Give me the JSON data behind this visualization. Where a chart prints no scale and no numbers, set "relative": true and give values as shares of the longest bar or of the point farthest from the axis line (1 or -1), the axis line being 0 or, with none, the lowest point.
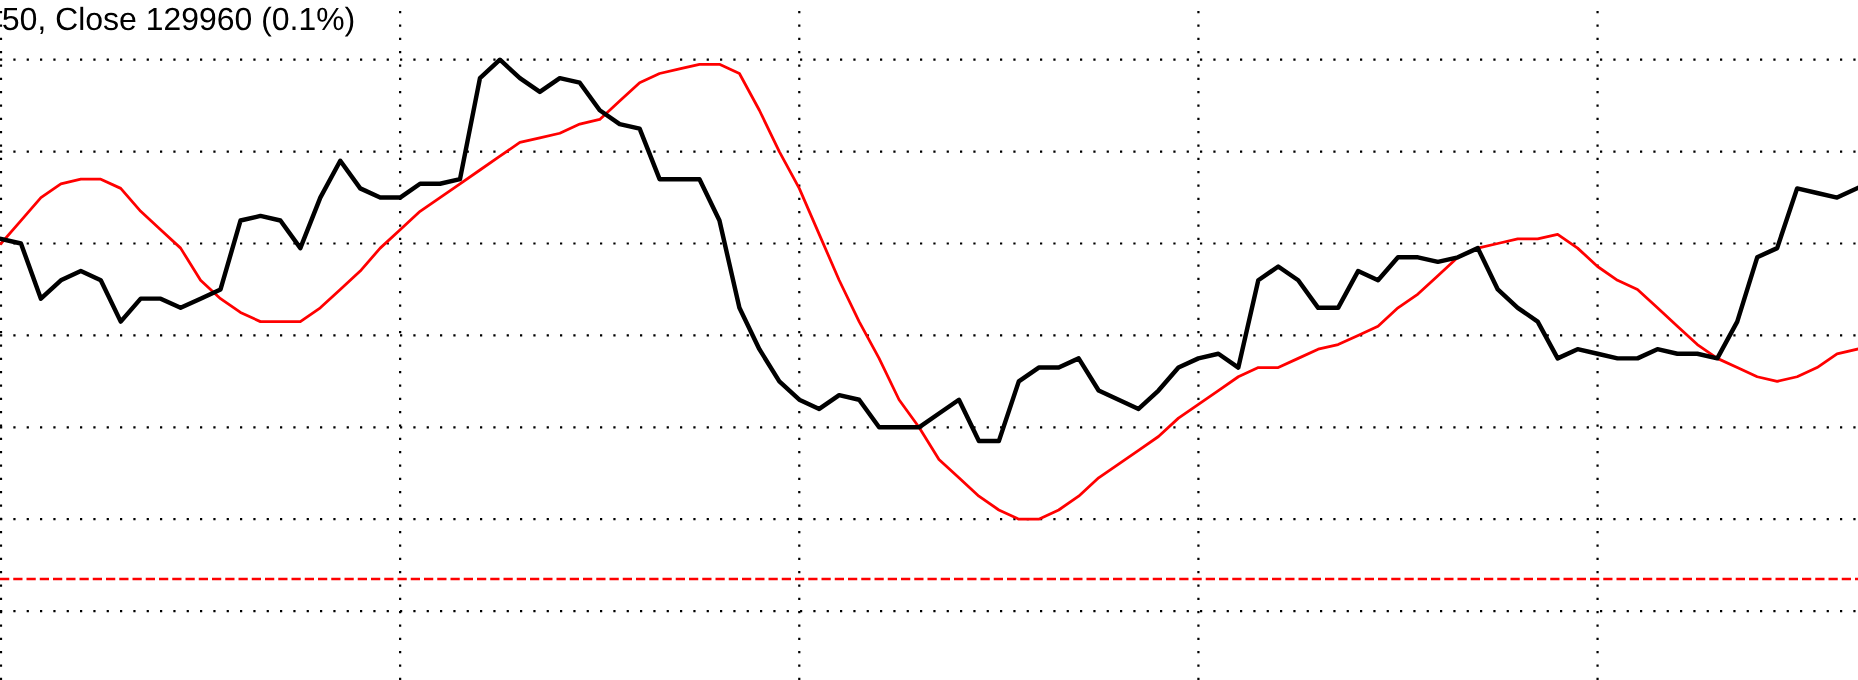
{
  "chart_data": {
    "type": "line",
    "title": "50, Close 129960 (0.1%)",
    "relative": true,
    "grid": true,
    "categories": [
      null,
      null,
      null,
      null,
      null,
      null,
      null,
      null,
      null,
      null,
      null,
      null,
      null,
      null,
      null,
      null,
      null,
      null,
      null,
      null,
      null,
      null,
      null,
      null,
      null,
      null,
      null,
      null,
      null,
      null,
      null,
      null,
      null,
      null,
      null,
      null,
      null,
      null,
      null,
      null,
      null,
      null,
      null,
      null,
      null,
      null,
      null,
      null,
      null,
      null,
      null,
      null,
      null,
      null,
      null,
      null,
      null,
      null,
      null,
      null,
      null,
      null,
      null,
      null,
      null,
      null,
      null,
      null,
      null,
      null,
      null,
      null,
      null,
      null,
      null,
      null,
      null,
      null,
      null,
      null,
      null,
      null,
      null,
      null,
      null,
      null,
      null,
      null,
      null,
      null,
      null,
      null,
      null,
      null
    ],
    "series": [
      {
        "color": "#000000",
        "values": [
          0.61,
          0.6,
          0.48,
          0.52,
          0.54,
          0.52,
          0.43,
          0.48,
          0.48,
          0.46,
          0.48,
          0.5,
          0.65,
          0.66,
          0.65,
          0.59,
          0.7,
          0.78,
          0.72,
          0.7,
          0.7,
          0.73,
          0.73,
          0.74,
          0.96,
          1.0,
          0.96,
          0.93,
          0.96,
          0.95,
          0.89,
          0.86,
          0.85,
          0.74,
          0.74,
          0.74,
          0.65,
          0.46,
          0.37,
          0.3,
          0.26,
          0.24,
          0.27,
          0.26,
          0.2,
          0.2,
          0.2,
          0.23,
          0.26,
          0.17,
          0.17,
          0.3,
          0.33,
          0.33,
          0.35,
          0.28,
          0.26,
          0.24,
          0.28,
          0.33,
          0.35,
          0.36,
          0.33,
          0.52,
          0.55,
          0.52,
          0.46,
          0.46,
          0.54,
          0.52,
          0.57,
          0.57,
          0.56,
          0.57,
          0.59,
          0.5,
          0.46,
          0.43,
          0.35,
          0.37,
          0.36,
          0.35,
          0.35,
          0.37,
          0.36,
          0.36,
          0.35,
          0.43,
          0.57,
          0.59,
          0.72,
          0.71,
          0.7,
          0.72
        ]
      },
      {
        "color": "#ff0000",
        "values": [
          0.6,
          0.65,
          0.7,
          0.73,
          0.74,
          0.74,
          0.72,
          0.67,
          0.63,
          0.59,
          0.52,
          0.48,
          0.45,
          0.43,
          0.43,
          0.43,
          0.46,
          0.5,
          0.54,
          0.59,
          0.63,
          0.67,
          0.7,
          0.73,
          0.76,
          0.79,
          0.82,
          0.83,
          0.84,
          0.86,
          0.87,
          0.91,
          0.95,
          0.97,
          0.98,
          0.99,
          0.99,
          0.97,
          0.89,
          0.8,
          0.72,
          0.62,
          0.52,
          0.43,
          0.35,
          0.26,
          0.2,
          0.13,
          0.09,
          0.05,
          0.02,
          0,
          0,
          0.02,
          0.05,
          0.09,
          0.12,
          0.15,
          0.18,
          0.22,
          0.25,
          0.28,
          0.31,
          0.33,
          0.33,
          0.35,
          0.37,
          0.38,
          0.4,
          0.42,
          0.46,
          0.49,
          0.53,
          0.57,
          0.59,
          0.6,
          0.61,
          0.61,
          0.62,
          0.59,
          0.55,
          0.52,
          0.5,
          0.46,
          0.42,
          0.38,
          0.35,
          0.33,
          0.31,
          0.3,
          0.31,
          0.33,
          0.36,
          0.37
        ]
      }
    ],
    "ref_lines": [
      {
        "axis": "y",
        "value": -0.13,
        "color": "#ff0000",
        "line_style": "dashed"
      }
    ]
  }
}
